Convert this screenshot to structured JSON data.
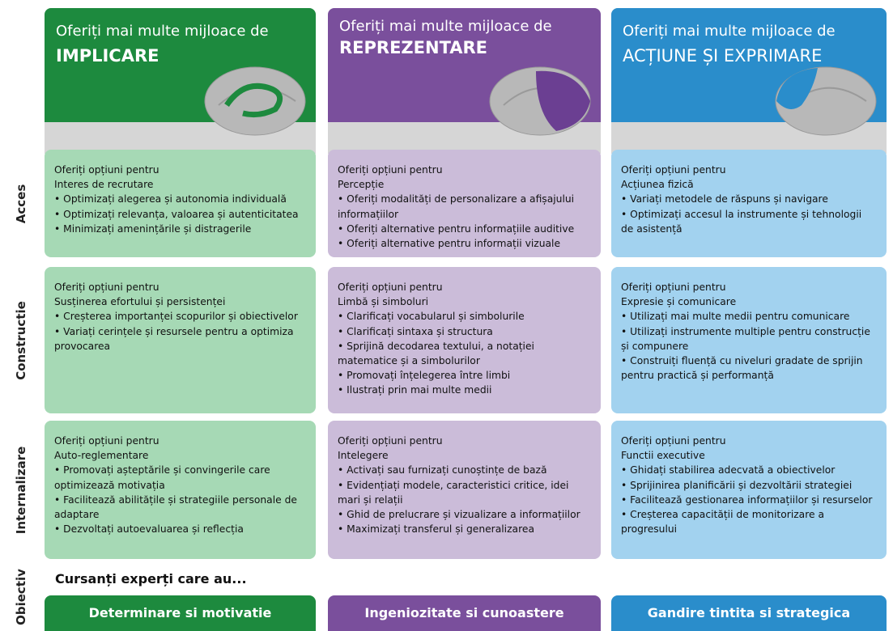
{
  "columns": [
    {
      "header_line1": "Oferiți mai multe mijloace de",
      "header_line2": "IMPLICARE"
    },
    {
      "header_line1": "Oferiți mai multe mijloace de",
      "header_line2": "REPREZENTARE"
    },
    {
      "header_line1": "Oferiți mai multe mijloace de",
      "header_line2": "ACȚIUNE ȘI EXPRIMARE"
    }
  ],
  "rows": [
    {
      "label": "Acces",
      "cells": [
        {
          "intro": "Oferiți opțiuni pentru",
          "title": "Interes de recrutare",
          "bullets": [
            "• Optimizați alegerea și autonomia individuală",
            "• Optimizați relevanța, valoarea și autenticitatea",
            "• Minimizați amenințările și distragerile"
          ]
        },
        {
          "intro": "Oferiți opțiuni pentru",
          "title": "Percepție",
          "bullets": [
            "• Oferiți modalități de personalizare a afișajului informațiilor",
            "• Oferiți alternative pentru informațiile auditive",
            "• Oferiți alternative pentru informații vizuale"
          ]
        },
        {
          "intro": "Oferiți opțiuni pentru",
          "title": "Acțiunea fizică",
          "bullets": [
            "• Variați metodele de răspuns și navigare",
            "• Optimizați accesul la instrumente și tehnologii de asistență"
          ]
        }
      ]
    },
    {
      "label": "Constructie",
      "cells": [
        {
          "intro": "Oferiți opțiuni pentru",
          "title": "Susținerea efortului și persistenței",
          "bullets": [
            "• Creșterea importanței scopurilor și obiectivelor",
            "• Variați cerințele și resursele pentru a optimiza provocarea"
          ]
        },
        {
          "intro": "Oferiți opțiuni pentru",
          "title": "Limbă și simboluri",
          "bullets": [
            "• Clarificați vocabularul și simbolurile",
            "• Clarificați sintaxa și structura",
            "• Sprijină decodarea textului, a notației matematice și a simbolurilor",
            "• Promovați înțelegerea între limbi",
            "• Ilustrați prin mai multe medii"
          ]
        },
        {
          "intro": "Oferiți opțiuni pentru",
          "title": "Expresie și comunicare",
          "bullets": [
            "• Utilizați mai multe medii pentru comunicare",
            "• Utilizați instrumente multiple pentru construcție și compunere",
            "• Construiți fluență cu niveluri gradate de sprijin pentru practică și performanță"
          ]
        }
      ]
    },
    {
      "label": "Internalizare",
      "cells": [
        {
          "intro": "Oferiți opțiuni pentru",
          "title": "Auto-reglementare",
          "bullets": [
            "• Promovați așteptările și convingerile care optimizează motivația",
            "• Facilitează abilitățile și strategiile personale de adaptare",
            "• Dezvoltați autoevaluarea și reflecția"
          ]
        },
        {
          "intro": "Oferiți opțiuni pentru",
          "title": "Intelegere",
          "bullets": [
            "• Activați sau furnizați cunoștințe de bază",
            "• Evidențiați modele, caracteristici critice, idei mari și relații",
            "• Ghid de prelucrare și vizualizare a informațiilor",
            "• Maximizați transferul și generalizarea"
          ]
        },
        {
          "intro": "Oferiți opțiuni pentru",
          "title": "Functii executive",
          "bullets": [
            "• Ghidați stabilirea adecvată a obiectivelor",
            "• Sprijinirea planificării și dezvoltării strategiei",
            "• Facilitează gestionarea informațiilor și resurselor",
            "• Creșterea capacității de monitorizare a progresului"
          ]
        }
      ]
    }
  ],
  "objective": {
    "label": "Obiectiv",
    "intro": "Cursanți experți care au...",
    "goals": [
      "Determinare si motivatie",
      "Ingeniozitate si cunoastere",
      "Gandire tintita si strategica"
    ]
  }
}
